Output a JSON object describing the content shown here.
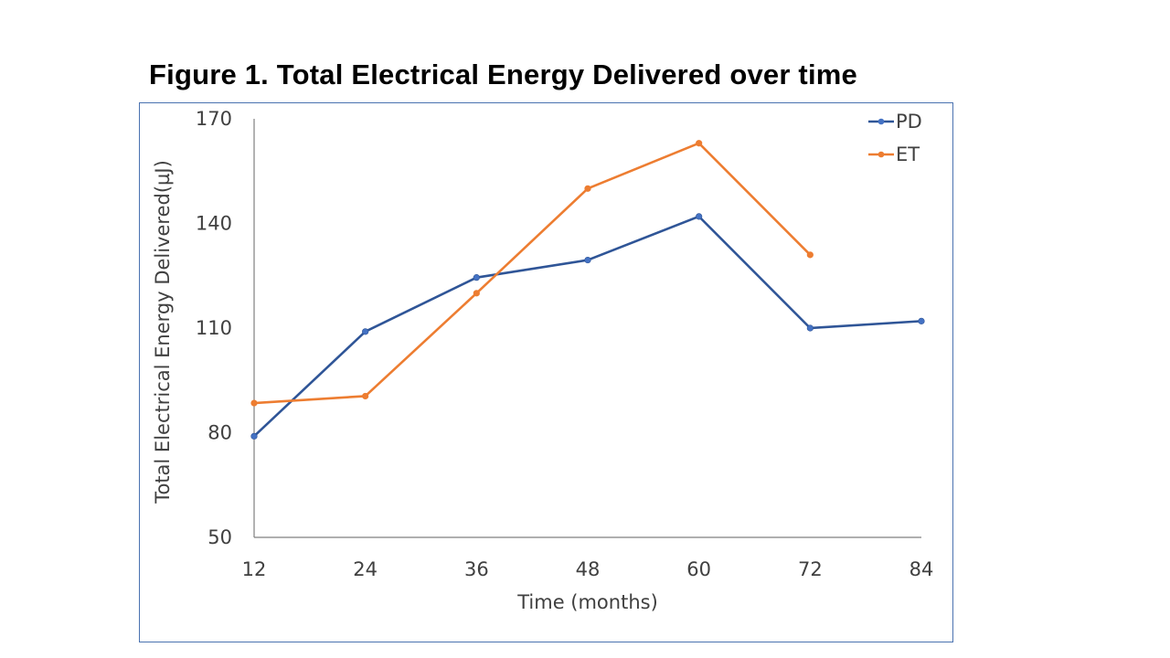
{
  "page": {
    "title": "Figure 1. Total Electrical Energy Delivered over time"
  },
  "chart_data": {
    "type": "line",
    "title": "Figure 1. Total Electrical Energy Delivered over time",
    "xlabel": "Time (months)",
    "ylabel": "Total Electrical Energy Delivered(µJ)",
    "categories": [
      12,
      24,
      36,
      48,
      60,
      72,
      84
    ],
    "ylim": [
      50,
      170
    ],
    "yticks": [
      50,
      80,
      110,
      140,
      170
    ],
    "grid": false,
    "legend_position": "top-right",
    "series": [
      {
        "name": "PD",
        "color": "#2f5597",
        "marker_color": "#4472c4",
        "values": [
          79,
          109,
          124.5,
          129.5,
          142,
          110,
          112
        ]
      },
      {
        "name": "ET",
        "color": "#ed7d31",
        "marker_color": "#ed7d31",
        "values": [
          88.5,
          90.5,
          120,
          150,
          163,
          131,
          null
        ]
      }
    ]
  }
}
